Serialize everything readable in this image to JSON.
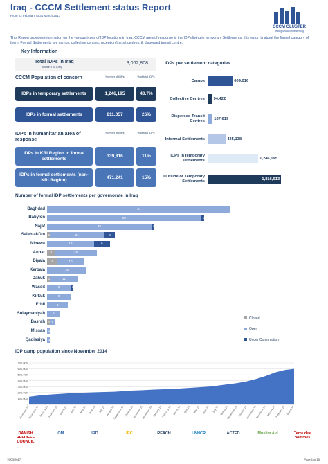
{
  "header": {
    "title": "Iraq -  CCCM Settlement status Report",
    "subtitle": "From 22 February to 31 March 2017",
    "logo_title": "CCCM CLUSTER",
    "logo_url": "www.globalcccmcluster.org"
  },
  "intro": "This Report provides information on the various types of IDP locations in Iraq. CCCM area of response is the IDPs living in temporary Settlements, this report is about the formal category of them. Formal Settlements are camps, collective centres, reception/transit centres, & dispersed transit centre.",
  "key_information": {
    "heading": "Key Information",
    "total": {
      "label": "Total IDPs in Iraq",
      "source": "(source DTM IOM)",
      "value": "3,062,808"
    },
    "cccm": {
      "heading": "CCCM Population of concern",
      "col_number": "Number of IDPs",
      "col_percent": "% of total IDPs",
      "rows": [
        {
          "label": "IDPs in temporary settlements",
          "number": "1,246,195",
          "percent": "40.7%"
        },
        {
          "label": "IDPs in formal settlements",
          "number": "811,057",
          "percent": "26%"
        }
      ]
    },
    "humanitarian": {
      "heading": "IDPs in humanitarian area of response",
      "col_number": "Number of IDPs",
      "col_percent": "% of total IDPs",
      "rows": [
        {
          "label": "IDPs in KRI Region in formal settlements",
          "number": "339,816",
          "percent": "11%"
        },
        {
          "label": "IDPs in formal settlements (non-KRI Region)",
          "number": "471,241",
          "percent": "15%"
        }
      ]
    }
  },
  "chart_data": [
    {
      "type": "bar",
      "orientation": "horizontal",
      "title": "IDPs per settlement categories",
      "categories": [
        "Camps",
        "Collective Centres",
        "Dispersed Transit Centres",
        "Informal Settlements",
        "IDPs in temporary settlements",
        "Outside of Temporary Settlements"
      ],
      "values": [
        609016,
        94422,
        107619,
        435138,
        1246195,
        1816613
      ],
      "value_labels": [
        "609,016",
        "94,422",
        "107,619",
        "435,138",
        "1,246,195",
        "1,816,613"
      ],
      "colors": [
        "#2f5597",
        "#1f3b5c",
        "#8eaadb",
        "#b4c7e7",
        "#deebf7",
        "#1f3b5c"
      ],
      "xlim": [
        0,
        1900000
      ]
    },
    {
      "type": "stacked_bar",
      "orientation": "horizontal",
      "title": "Number of formal IDP settlements per governorate in Iraq",
      "categories": [
        "Baghdad",
        "Babylon",
        "Najaf",
        "Salah al-Din",
        "Ninewa",
        "Anbar",
        "Diyala",
        "Kerbala",
        "Dahuk",
        "Wassit",
        "Kirkuk",
        "Erbil",
        "Sulaymaniyah",
        "Basrah",
        "Missan",
        "Qadissiya"
      ],
      "series": [
        {
          "name": "Closed",
          "color": "#a5a5a5",
          "values": [
            null,
            null,
            null,
            1,
            null,
            3,
            4,
            null,
            1,
            null,
            null,
            null,
            null,
            1,
            null,
            null
          ]
        },
        {
          "name": "Open",
          "color": "#8eaadb",
          "values": [
            70,
            59,
            40,
            21,
            18,
            16,
            10,
            15,
            11,
            9,
            9,
            8,
            5,
            2,
            1,
            1
          ]
        },
        {
          "name": "Under Construction",
          "color": "#2f5597",
          "values": [
            null,
            1,
            1,
            4,
            6,
            null,
            null,
            null,
            null,
            1,
            null,
            null,
            null,
            null,
            null,
            null
          ]
        }
      ],
      "xlim": [
        0,
        72
      ],
      "legend": "right"
    },
    {
      "type": "area",
      "title": "IDP camp population since November 2014",
      "categories": [
        "November-14",
        "December-14",
        "January-15",
        "February-15",
        "March-15",
        "April-15",
        "May-15",
        "June-15",
        "July-15",
        "August-15",
        "September-15",
        "October-15",
        "November-15",
        "December-15",
        "January-16",
        "February-16",
        "March-16",
        "April-16",
        "May-16",
        "June-16",
        "July-16",
        "August-16",
        "September-16",
        "October-16",
        "November-16",
        "December-16",
        "January-17",
        "February-17",
        "March-17"
      ],
      "values": [
        130000,
        150000,
        165000,
        175000,
        185000,
        195000,
        200000,
        205000,
        210000,
        215000,
        225000,
        235000,
        240000,
        250000,
        255000,
        260000,
        270000,
        280000,
        290000,
        300000,
        320000,
        340000,
        360000,
        390000,
        430000,
        480000,
        540000,
        580000,
        600000
      ],
      "color": "#4472c4",
      "ylim": [
        0,
        700000
      ],
      "yticks": [
        {
          "value": 0,
          "label": "-"
        },
        {
          "value": 100000,
          "label": "100,000"
        },
        {
          "value": 200000,
          "label": "200,000"
        },
        {
          "value": 300000,
          "label": "300,000"
        },
        {
          "value": 400000,
          "label": "400,000"
        },
        {
          "value": 500000,
          "label": "500,000"
        },
        {
          "value": 600000,
          "label": "600,000"
        },
        {
          "value": 700000,
          "label": "700,000"
        }
      ],
      "grid": true
    }
  ],
  "footer": {
    "logos": [
      "DANISH REFUGEE COUNCIL",
      "IOM",
      "IRD",
      "IRC",
      "REACH",
      "UNHCR",
      "ACTED",
      "Muslim Aid",
      "Terre des hommes"
    ],
    "date": "19/03/2017",
    "page": "Page 1 of 15"
  }
}
